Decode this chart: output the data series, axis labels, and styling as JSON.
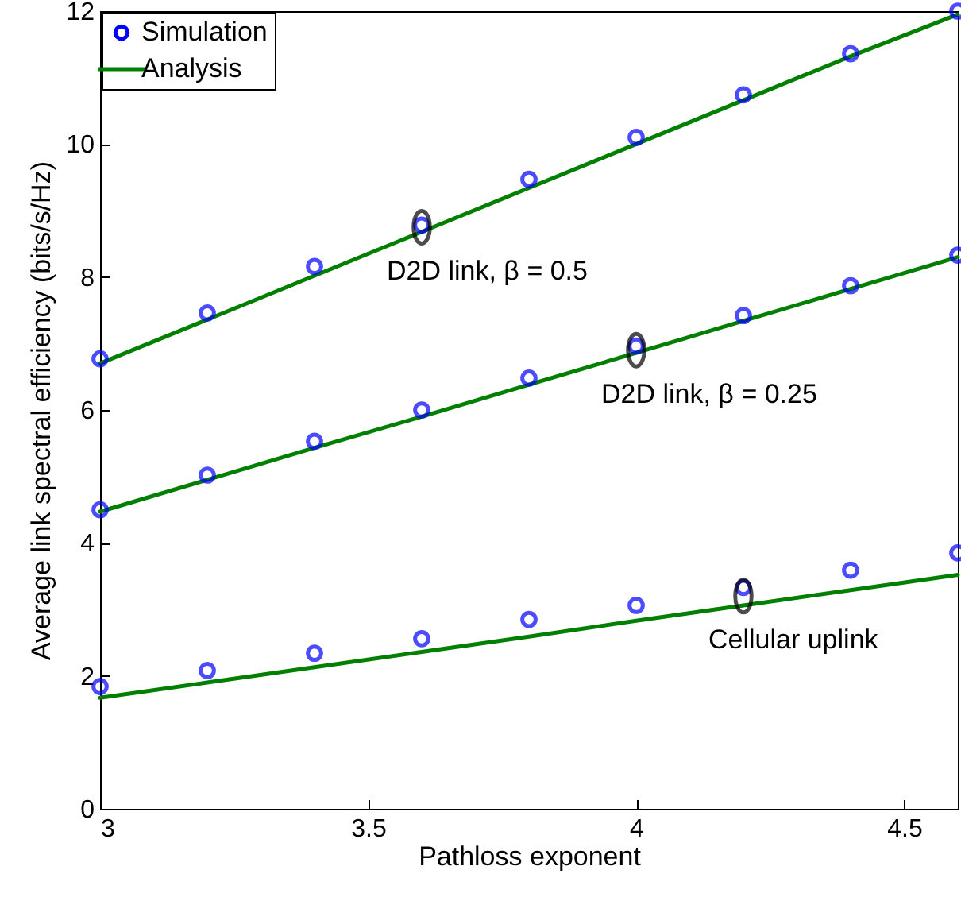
{
  "chart_data": {
    "type": "line",
    "xlabel": "Pathloss exponent",
    "ylabel": "Average link spectral efficiency (bits/s/Hz)",
    "x": [
      3,
      3.2,
      3.4,
      3.6,
      3.8,
      4,
      4.2,
      4.4,
      4.6
    ],
    "xlim": [
      3,
      4.6
    ],
    "xticks": [
      3,
      3.5,
      4,
      4.5
    ],
    "ylim": [
      0,
      12
    ],
    "yticks": [
      0,
      2,
      4,
      6,
      8,
      10,
      12
    ],
    "grid": false,
    "legend": "top left",
    "series": [
      {
        "name": "Simulation",
        "type": "scatter",
        "marker": "circle",
        "color": "#0000ff",
        "values": [
          6.77,
          7.46,
          8.16,
          8.78,
          9.47,
          10.1,
          10.74,
          11.36,
          12.0
        ]
      },
      {
        "type": "scatter",
        "marker": "circle",
        "color": "#0000ff",
        "values": [
          4.5,
          5.02,
          5.53,
          6.0,
          6.48,
          6.96,
          7.42,
          7.87,
          8.33
        ]
      },
      {
        "type": "scatter",
        "marker": "circle",
        "color": "#0000ff",
        "values": [
          1.84,
          2.08,
          2.34,
          2.56,
          2.85,
          3.06,
          3.33,
          3.59,
          3.85
        ]
      },
      {
        "name": "Analysis",
        "type": "line",
        "line_style": "solid",
        "color": "#007f00",
        "values": [
          6.7,
          7.36,
          8.02,
          8.68,
          9.34,
          10.0,
          10.66,
          11.32,
          11.95
        ]
      },
      {
        "type": "line",
        "line_style": "solid",
        "color": "#007f00",
        "values": [
          4.47,
          4.95,
          5.43,
          5.9,
          6.38,
          6.86,
          7.34,
          7.82,
          8.3
        ]
      },
      {
        "type": "line",
        "line_style": "solid",
        "color": "#007f00",
        "values": [
          1.67,
          1.9,
          2.13,
          2.36,
          2.59,
          2.83,
          3.06,
          3.29,
          3.52
        ]
      }
    ],
    "annotations": [
      {
        "text": "D2D link, β = 0.5",
        "x": 3.6,
        "y": 8.75
      },
      {
        "text": "D2D link, β = 0.25",
        "x": 4,
        "y": 6.9
      },
      {
        "text": "Cellular uplink",
        "x": 4.2,
        "y": 3.2
      }
    ]
  }
}
